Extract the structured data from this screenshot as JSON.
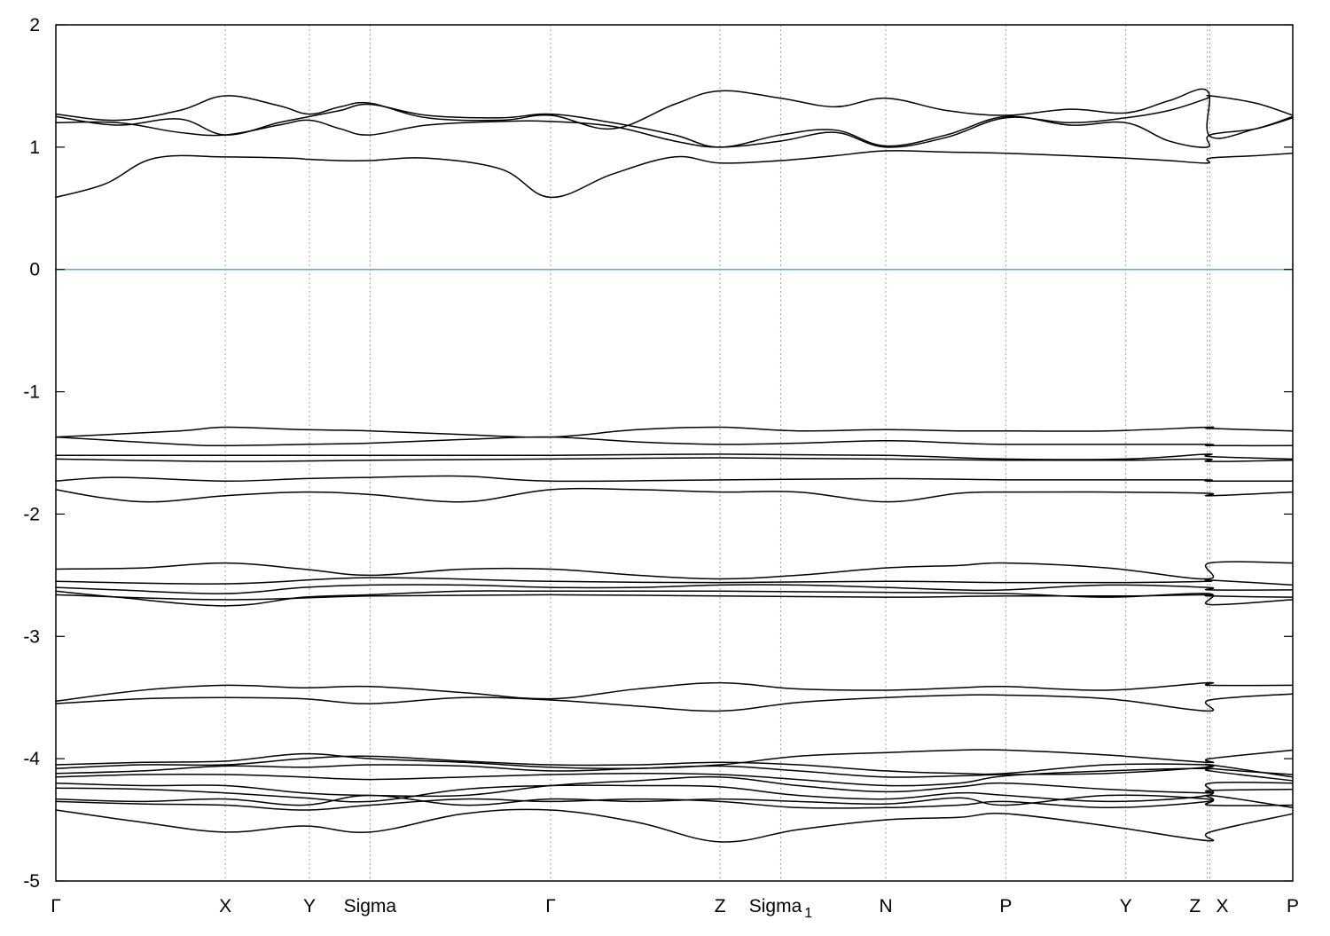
{
  "chart_data": {
    "type": "line",
    "title": "",
    "xlabel": "",
    "ylabel": "",
    "ylim": [
      -5,
      2
    ],
    "yticks": [
      2,
      1,
      0,
      -1,
      -2,
      -3,
      -4,
      -5
    ],
    "ytick_labels": [
      "2",
      "1",
      "0",
      "-1",
      "-2",
      "-3",
      "-4",
      "-5"
    ],
    "xlim": [
      0,
      1
    ],
    "kpoints": [
      {
        "label": "Γ",
        "sub": "",
        "x": 0.0
      },
      {
        "label": "X",
        "sub": "",
        "x": 0.137
      },
      {
        "label": "Y",
        "sub": "",
        "x": 0.205
      },
      {
        "label": "Sigma",
        "sub": "",
        "x": 0.254
      },
      {
        "label": "Γ",
        "sub": "",
        "x": 0.4
      },
      {
        "label": "Z",
        "sub": "",
        "x": 0.537
      },
      {
        "label": "Sigma",
        "sub": "1",
        "x": 0.586
      },
      {
        "label": "N",
        "sub": "",
        "x": 0.671
      },
      {
        "label": "P",
        "sub": "",
        "x": 0.768
      },
      {
        "label": "Y",
        "sub": "",
        "x": 0.865
      },
      {
        "label": "Z",
        "sub": "",
        "x": 0.931
      },
      {
        "label": "X",
        "sub": "",
        "x": 0.933
      },
      {
        "label": "P",
        "sub": "",
        "x": 1.0
      }
    ],
    "grid": "vertical dotted at k-points",
    "fermi_level": {
      "y": 0,
      "color": "#5fb3c8"
    },
    "line_color": "#000000",
    "series": [
      {
        "x": [
          0,
          0.04,
          0.08,
          0.137,
          0.19,
          0.205,
          0.23,
          0.254,
          0.3,
          0.36,
          0.4,
          0.45,
          0.5,
          0.537,
          0.586,
          0.63,
          0.671,
          0.72,
          0.768,
          0.82,
          0.865,
          0.9,
          0.931,
          0.933,
          0.97,
          1.0
        ],
        "y": [
          0.59,
          0.7,
          0.91,
          0.92,
          0.91,
          0.9,
          0.89,
          0.89,
          0.91,
          0.82,
          0.59,
          0.78,
          0.92,
          0.87,
          0.89,
          0.93,
          0.97,
          0.96,
          0.95,
          0.93,
          0.91,
          0.89,
          0.87,
          0.91,
          0.93,
          0.95
        ]
      },
      {
        "x": [
          0,
          0.05,
          0.1,
          0.137,
          0.18,
          0.205,
          0.23,
          0.254,
          0.3,
          0.36,
          0.4,
          0.45,
          0.5,
          0.537,
          0.586,
          0.63,
          0.671,
          0.72,
          0.768,
          0.82,
          0.865,
          0.9,
          0.931,
          0.933,
          0.97,
          1.0
        ],
        "y": [
          1.2,
          1.2,
          1.12,
          1.1,
          1.18,
          1.22,
          1.15,
          1.1,
          1.18,
          1.21,
          1.21,
          1.17,
          1.05,
          1.0,
          1.05,
          1.12,
          1.0,
          1.08,
          1.24,
          1.2,
          1.24,
          1.3,
          1.4,
          1.42,
          1.36,
          1.26
        ]
      },
      {
        "x": [
          0,
          0.05,
          0.1,
          0.137,
          0.18,
          0.205,
          0.23,
          0.254,
          0.3,
          0.36,
          0.4,
          0.45,
          0.5,
          0.537,
          0.586,
          0.63,
          0.671,
          0.72,
          0.768,
          0.82,
          0.865,
          0.9,
          0.931,
          0.933,
          0.97,
          1.0
        ],
        "y": [
          1.27,
          1.22,
          1.3,
          1.42,
          1.34,
          1.27,
          1.33,
          1.36,
          1.24,
          1.22,
          1.26,
          1.15,
          1.35,
          1.46,
          1.4,
          1.33,
          1.4,
          1.3,
          1.26,
          1.31,
          1.28,
          1.38,
          1.46,
          1.09,
          1.15,
          1.25
        ]
      },
      {
        "x": [
          0,
          0.05,
          0.1,
          0.137,
          0.18,
          0.205,
          0.23,
          0.254,
          0.3,
          0.36,
          0.4,
          0.45,
          0.5,
          0.537,
          0.586,
          0.63,
          0.671,
          0.72,
          0.768,
          0.82,
          0.865,
          0.9,
          0.931,
          0.933,
          0.97,
          1.0
        ],
        "y": [
          1.25,
          1.18,
          1.23,
          1.1,
          1.2,
          1.25,
          1.3,
          1.35,
          1.26,
          1.24,
          1.27,
          1.2,
          1.1,
          1.0,
          1.1,
          1.14,
          1.01,
          1.1,
          1.25,
          1.18,
          1.2,
          1.05,
          1.0,
          1.1,
          1.15,
          1.24
        ]
      },
      {
        "x": [
          0,
          0.1,
          0.137,
          0.2,
          0.254,
          0.33,
          0.4,
          0.47,
          0.537,
          0.6,
          0.671,
          0.73,
          0.768,
          0.85,
          0.931,
          0.933,
          1.0
        ],
        "y": [
          -1.37,
          -1.32,
          -1.29,
          -1.31,
          -1.32,
          -1.35,
          -1.37,
          -1.31,
          -1.29,
          -1.32,
          -1.31,
          -1.32,
          -1.32,
          -1.32,
          -1.29,
          -1.3,
          -1.32
        ]
      },
      {
        "x": [
          0,
          0.1,
          0.137,
          0.2,
          0.254,
          0.33,
          0.4,
          0.47,
          0.537,
          0.6,
          0.671,
          0.73,
          0.768,
          0.85,
          0.931,
          0.933,
          1.0
        ],
        "y": [
          -1.37,
          -1.43,
          -1.44,
          -1.43,
          -1.42,
          -1.39,
          -1.37,
          -1.41,
          -1.43,
          -1.42,
          -1.4,
          -1.42,
          -1.43,
          -1.43,
          -1.43,
          -1.44,
          -1.44
        ]
      },
      {
        "x": [
          0,
          0.137,
          0.254,
          0.4,
          0.537,
          0.671,
          0.768,
          0.865,
          0.931,
          0.933,
          1.0
        ],
        "y": [
          -1.52,
          -1.52,
          -1.52,
          -1.52,
          -1.51,
          -1.52,
          -1.55,
          -1.55,
          -1.51,
          -1.53,
          -1.55
        ]
      },
      {
        "x": [
          0,
          0.137,
          0.254,
          0.4,
          0.537,
          0.671,
          0.768,
          0.865,
          0.931,
          0.933,
          1.0
        ],
        "y": [
          -1.55,
          -1.57,
          -1.56,
          -1.55,
          -1.54,
          -1.55,
          -1.56,
          -1.56,
          -1.55,
          -1.57,
          -1.56
        ]
      },
      {
        "x": [
          0,
          0.05,
          0.137,
          0.2,
          0.254,
          0.33,
          0.4,
          0.537,
          0.671,
          0.768,
          0.865,
          0.931,
          0.933,
          1.0
        ],
        "y": [
          -1.73,
          -1.7,
          -1.73,
          -1.71,
          -1.7,
          -1.69,
          -1.73,
          -1.72,
          -1.71,
          -1.72,
          -1.72,
          -1.72,
          -1.73,
          -1.73
        ]
      },
      {
        "x": [
          0,
          0.04,
          0.08,
          0.137,
          0.2,
          0.254,
          0.33,
          0.4,
          0.47,
          0.537,
          0.6,
          0.671,
          0.73,
          0.768,
          0.85,
          0.931,
          0.933,
          1.0
        ],
        "y": [
          -1.8,
          -1.87,
          -1.9,
          -1.85,
          -1.82,
          -1.84,
          -1.9,
          -1.8,
          -1.8,
          -1.82,
          -1.82,
          -1.9,
          -1.83,
          -1.82,
          -1.82,
          -1.83,
          -1.85,
          -1.82
        ]
      },
      {
        "x": [
          0,
          0.07,
          0.137,
          0.2,
          0.254,
          0.33,
          0.4,
          0.47,
          0.537,
          0.6,
          0.671,
          0.73,
          0.768,
          0.85,
          0.931,
          0.933,
          1.0
        ],
        "y": [
          -2.45,
          -2.44,
          -2.4,
          -2.45,
          -2.5,
          -2.45,
          -2.45,
          -2.5,
          -2.53,
          -2.5,
          -2.44,
          -2.42,
          -2.4,
          -2.44,
          -2.53,
          -2.4,
          -2.4
        ]
      },
      {
        "x": [
          0,
          0.137,
          0.254,
          0.4,
          0.537,
          0.671,
          0.768,
          0.865,
          0.931,
          0.933,
          1.0
        ],
        "y": [
          -2.55,
          -2.57,
          -2.52,
          -2.55,
          -2.56,
          -2.55,
          -2.56,
          -2.56,
          -2.55,
          -2.54,
          -2.58
        ]
      },
      {
        "x": [
          0,
          0.05,
          0.137,
          0.2,
          0.254,
          0.33,
          0.4,
          0.47,
          0.537,
          0.6,
          0.671,
          0.73,
          0.768,
          0.85,
          0.931,
          0.933,
          1.0
        ],
        "y": [
          -2.6,
          -2.62,
          -2.65,
          -2.6,
          -2.58,
          -2.58,
          -2.6,
          -2.6,
          -2.58,
          -2.58,
          -2.6,
          -2.62,
          -2.62,
          -2.58,
          -2.6,
          -2.62,
          -2.62
        ]
      },
      {
        "x": [
          0,
          0.05,
          0.137,
          0.2,
          0.254,
          0.33,
          0.4,
          0.537,
          0.671,
          0.768,
          0.85,
          0.931,
          0.933,
          1.0
        ],
        "y": [
          -2.63,
          -2.68,
          -2.75,
          -2.68,
          -2.66,
          -2.63,
          -2.63,
          -2.63,
          -2.64,
          -2.65,
          -2.68,
          -2.65,
          -2.74,
          -2.7
        ]
      },
      {
        "x": [
          0,
          0.137,
          0.254,
          0.4,
          0.537,
          0.671,
          0.768,
          0.865,
          0.931,
          0.933,
          1.0
        ],
        "y": [
          -2.66,
          -2.7,
          -2.67,
          -2.66,
          -2.67,
          -2.68,
          -2.67,
          -2.67,
          -2.66,
          -2.67,
          -2.68
        ]
      },
      {
        "x": [
          0,
          0.07,
          0.137,
          0.2,
          0.254,
          0.33,
          0.4,
          0.47,
          0.537,
          0.6,
          0.671,
          0.73,
          0.768,
          0.85,
          0.931,
          0.933,
          1.0
        ],
        "y": [
          -3.53,
          -3.44,
          -3.4,
          -3.42,
          -3.41,
          -3.46,
          -3.51,
          -3.43,
          -3.38,
          -3.43,
          -3.44,
          -3.42,
          -3.41,
          -3.44,
          -3.38,
          -3.4,
          -3.4
        ]
      },
      {
        "x": [
          0,
          0.07,
          0.137,
          0.2,
          0.254,
          0.33,
          0.4,
          0.47,
          0.537,
          0.6,
          0.671,
          0.73,
          0.768,
          0.85,
          0.931,
          0.933,
          1.0
        ],
        "y": [
          -3.55,
          -3.51,
          -3.5,
          -3.51,
          -3.55,
          -3.5,
          -3.52,
          -3.57,
          -3.61,
          -3.54,
          -3.5,
          -3.48,
          -3.48,
          -3.51,
          -3.61,
          -3.52,
          -3.47
        ]
      },
      {
        "x": [
          0,
          0.07,
          0.137,
          0.2,
          0.254,
          0.33,
          0.4,
          0.47,
          0.537,
          0.6,
          0.671,
          0.73,
          0.768,
          0.85,
          0.931,
          0.933,
          1.0
        ],
        "y": [
          -4.05,
          -4.03,
          -4.02,
          -3.96,
          -4.0,
          -4.03,
          -4.07,
          -4.08,
          -4.05,
          -3.98,
          -3.95,
          -3.93,
          -3.93,
          -3.97,
          -4.03,
          -4.0,
          -3.93
        ]
      },
      {
        "x": [
          0,
          0.07,
          0.137,
          0.2,
          0.254,
          0.33,
          0.4,
          0.47,
          0.537,
          0.6,
          0.671,
          0.73,
          0.768,
          0.85,
          0.931,
          0.933,
          1.0
        ],
        "y": [
          -4.08,
          -4.05,
          -4.05,
          -4.0,
          -3.98,
          -4.02,
          -4.05,
          -4.05,
          -4.03,
          -4.05,
          -4.1,
          -4.12,
          -4.12,
          -4.05,
          -4.05,
          -4.08,
          -4.13
        ]
      },
      {
        "x": [
          0,
          0.07,
          0.137,
          0.2,
          0.254,
          0.33,
          0.4,
          0.47,
          0.537,
          0.6,
          0.671,
          0.73,
          0.768,
          0.85,
          0.931,
          0.933,
          1.0
        ],
        "y": [
          -4.12,
          -4.1,
          -4.06,
          -4.07,
          -4.05,
          -4.06,
          -4.1,
          -4.08,
          -4.06,
          -4.1,
          -4.15,
          -4.14,
          -4.13,
          -4.12,
          -4.07,
          -4.05,
          -4.15
        ]
      },
      {
        "x": [
          0,
          0.07,
          0.137,
          0.2,
          0.254,
          0.33,
          0.4,
          0.47,
          0.537,
          0.6,
          0.671,
          0.73,
          0.768,
          0.85,
          0.931,
          0.933,
          1.0
        ],
        "y": [
          -4.15,
          -4.13,
          -4.13,
          -4.15,
          -4.17,
          -4.15,
          -4.13,
          -4.12,
          -4.13,
          -4.17,
          -4.22,
          -4.2,
          -4.14,
          -4.1,
          -4.08,
          -4.1,
          -4.18
        ]
      },
      {
        "x": [
          0,
          0.07,
          0.137,
          0.2,
          0.254,
          0.33,
          0.4,
          0.47,
          0.537,
          0.6,
          0.671,
          0.73,
          0.768,
          0.85,
          0.931,
          0.933,
          1.0
        ],
        "y": [
          -4.2,
          -4.22,
          -4.22,
          -4.28,
          -4.3,
          -4.3,
          -4.22,
          -4.18,
          -4.15,
          -4.22,
          -4.27,
          -4.23,
          -4.2,
          -4.25,
          -4.28,
          -4.26,
          -4.25
        ]
      },
      {
        "x": [
          0,
          0.07,
          0.137,
          0.2,
          0.254,
          0.33,
          0.4,
          0.47,
          0.537,
          0.6,
          0.671,
          0.73,
          0.768,
          0.85,
          0.931,
          0.933,
          1.0
        ],
        "y": [
          -4.24,
          -4.25,
          -4.28,
          -4.32,
          -4.35,
          -4.25,
          -4.22,
          -4.22,
          -4.23,
          -4.3,
          -4.33,
          -4.28,
          -4.3,
          -4.35,
          -4.3,
          -4.2,
          -4.2
        ]
      },
      {
        "x": [
          0,
          0.07,
          0.137,
          0.2,
          0.254,
          0.33,
          0.4,
          0.47,
          0.537,
          0.6,
          0.671,
          0.73,
          0.768,
          0.85,
          0.931,
          0.933,
          1.0
        ],
        "y": [
          -4.33,
          -4.35,
          -4.33,
          -4.38,
          -4.3,
          -4.38,
          -4.33,
          -4.35,
          -4.33,
          -4.35,
          -4.37,
          -4.32,
          -4.38,
          -4.3,
          -4.33,
          -4.38,
          -4.38
        ]
      },
      {
        "x": [
          0,
          0.07,
          0.137,
          0.2,
          0.254,
          0.33,
          0.4,
          0.47,
          0.537,
          0.6,
          0.671,
          0.73,
          0.768,
          0.85,
          0.931,
          0.933,
          1.0
        ],
        "y": [
          -4.35,
          -4.37,
          -4.38,
          -4.42,
          -4.38,
          -4.33,
          -4.35,
          -4.33,
          -4.35,
          -4.4,
          -4.4,
          -4.38,
          -4.35,
          -4.4,
          -4.35,
          -4.3,
          -4.4
        ]
      },
      {
        "x": [
          0,
          0.07,
          0.137,
          0.2,
          0.254,
          0.33,
          0.4,
          0.47,
          0.537,
          0.6,
          0.671,
          0.73,
          0.768,
          0.85,
          0.931,
          0.933,
          1.0
        ],
        "y": [
          -4.42,
          -4.52,
          -4.6,
          -4.55,
          -4.6,
          -4.45,
          -4.42,
          -4.52,
          -4.68,
          -4.58,
          -4.5,
          -4.48,
          -4.45,
          -4.55,
          -4.67,
          -4.6,
          -4.45
        ]
      }
    ]
  }
}
